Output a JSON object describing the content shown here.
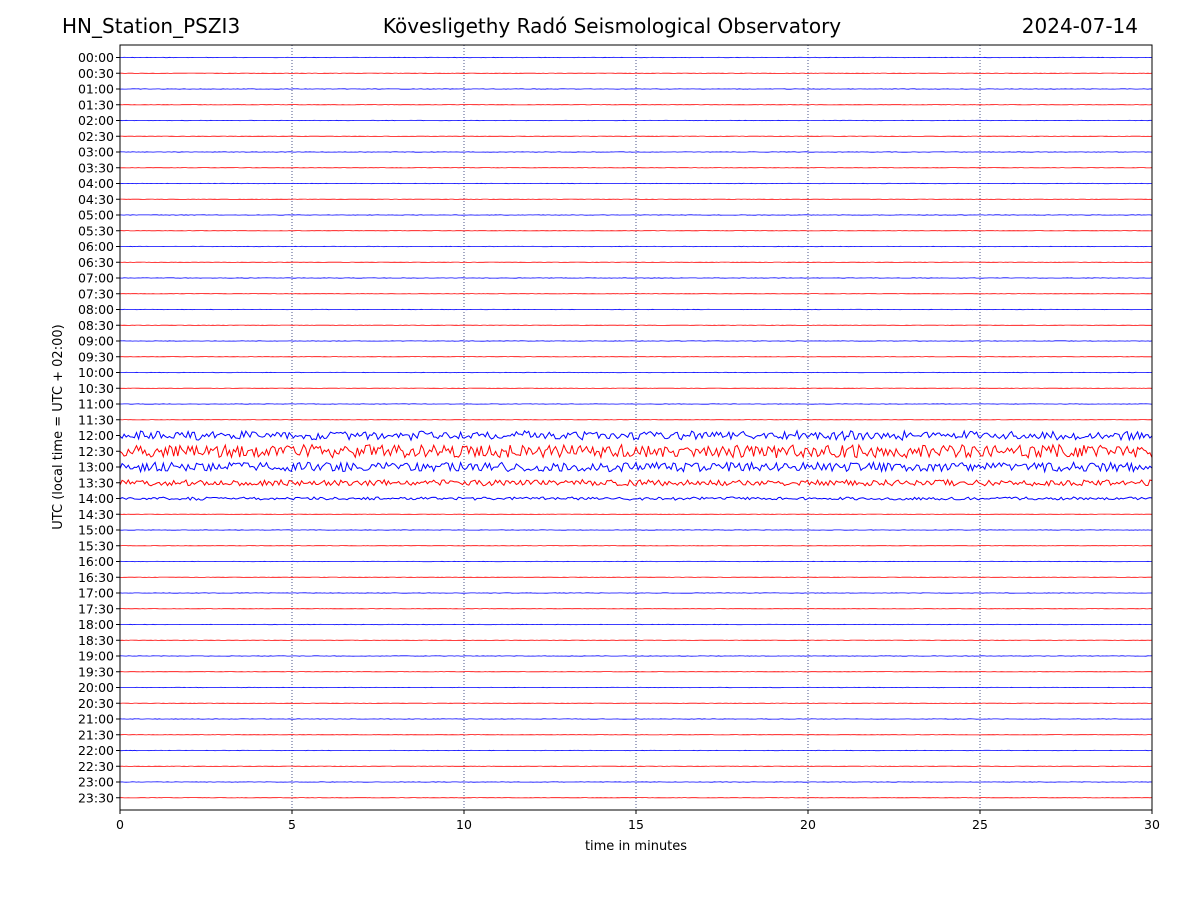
{
  "header": {
    "station": "HN_Station_PSZI3",
    "observatory": "Kövesligethy Radó Seismological Observatory",
    "date": "2024-07-14"
  },
  "chart_data": {
    "type": "line",
    "title": "Kövesligethy Radó Seismological Observatory",
    "xlabel": "time in minutes",
    "ylabel": "UTC (local time = UTC + 02:00)",
    "xlim": [
      0,
      30
    ],
    "xticks": [
      0,
      5,
      10,
      15,
      20,
      25,
      30
    ],
    "grid": "vertical dotted lines at 5-minute ticks",
    "colors": {
      "even_trace": "#0000ff",
      "odd_trace": "#ff0000",
      "grid": "#1f2a6b"
    },
    "traces": [
      "00:00",
      "00:30",
      "01:00",
      "01:30",
      "02:00",
      "02:30",
      "03:00",
      "03:30",
      "04:00",
      "04:30",
      "05:00",
      "05:30",
      "06:00",
      "06:30",
      "07:00",
      "07:30",
      "08:00",
      "08:30",
      "09:00",
      "09:30",
      "10:00",
      "10:30",
      "11:00",
      "11:30",
      "12:00",
      "12:30",
      "13:00",
      "13:30",
      "14:00",
      "14:30",
      "15:00",
      "15:30",
      "16:00",
      "16:30",
      "17:00",
      "17:30",
      "18:00",
      "18:30",
      "19:00",
      "19:30",
      "20:00",
      "20:30",
      "21:00",
      "21:30",
      "22:00",
      "22:30",
      "23:00",
      "23:30"
    ],
    "trace_activity": [
      {
        "trace": "12:00",
        "relative_amplitude": 0.6
      },
      {
        "trace": "12:30",
        "relative_amplitude": 1.0
      },
      {
        "trace": "13:00",
        "relative_amplitude": 0.7
      },
      {
        "trace": "13:30",
        "relative_amplitude": 0.45
      },
      {
        "trace": "14:00",
        "relative_amplitude": 0.2
      }
    ]
  }
}
